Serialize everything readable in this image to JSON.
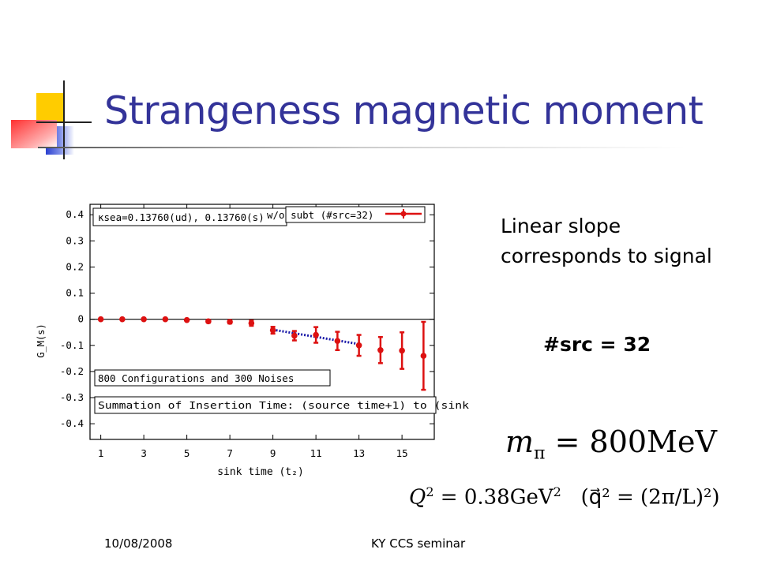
{
  "title": "Strangeness magnetic moment",
  "notes": {
    "line1": "Linear slope",
    "line2": "corresponds to signal"
  },
  "src_label": "#src = 32",
  "formulas": {
    "mpi_lhs": "m",
    "mpi_sub": "π",
    "mpi_rhs": "= 800MeV",
    "q2_lhs": "Q",
    "q2_exp": "2",
    "q2_rhs": "= 0.38GeV",
    "q2_rhs_exp": "2",
    "q2_paren": "(q⃗² = (2π/L)²)"
  },
  "footer": {
    "date": "10/08/2008",
    "seminar": "KY CCS seminar"
  },
  "colors": {
    "title": "#333399",
    "series": "#dd1111",
    "fit": "#1a1aa8"
  },
  "chart_data": {
    "type": "scatter",
    "xlabel": "sink time (t₂)",
    "ylabel": "G_M(s)",
    "xlim": [
      0.5,
      16.5
    ],
    "ylim": [
      -0.46,
      0.44
    ],
    "xticks": [
      1,
      3,
      5,
      7,
      9,
      11,
      13,
      15
    ],
    "yticks": [
      0.4,
      0.3,
      0.2,
      0.1,
      0,
      -0.1,
      -0.2,
      -0.3,
      -0.4
    ],
    "ytick_labels": [
      "0.4",
      "0.3",
      "0.2",
      "0.1",
      "0",
      "-0.1",
      "-0.2",
      "-0.3",
      "-0.4"
    ],
    "legend": {
      "text": "w/o subt (#src=32)",
      "position": "top-right"
    },
    "annotations": [
      "κsea=0.13760(ud), 0.13760(s)",
      "800 Configurations and 300 Noises",
      "Summation of Insertion Time: (source time+1) to (sink"
    ],
    "series": [
      {
        "name": "w/o subt (#src=32)",
        "x": [
          1,
          2,
          3,
          4,
          5,
          6,
          7,
          8,
          9,
          10,
          11,
          12,
          13,
          14,
          15,
          16
        ],
        "y": [
          0.0,
          0.0,
          0.0,
          0.0,
          -0.003,
          -0.008,
          -0.01,
          -0.015,
          -0.042,
          -0.063,
          -0.06,
          -0.083,
          -0.1,
          -0.118,
          -0.12,
          -0.14
        ],
        "err": [
          0.003,
          0.003,
          0.003,
          0.003,
          0.004,
          0.005,
          0.006,
          0.01,
          0.013,
          0.018,
          0.03,
          0.035,
          0.04,
          0.05,
          0.07,
          0.13
        ]
      }
    ],
    "fit": {
      "x": [
        9,
        13
      ],
      "y": [
        -0.04,
        -0.095
      ]
    }
  }
}
